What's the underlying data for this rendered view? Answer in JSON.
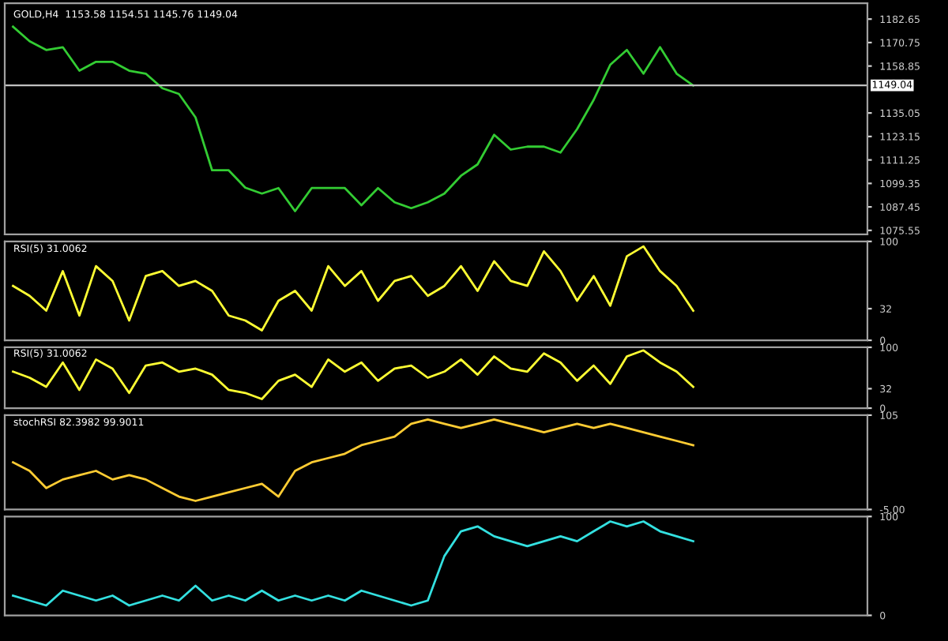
{
  "chart_data": [
    {
      "type": "line",
      "title": "GOLD,H4  1153.58 1154.51 1145.76 1149.04",
      "categories": [
        null,
        null,
        null,
        null,
        null,
        null,
        null,
        null,
        null,
        null,
        null,
        null,
        null,
        null,
        null,
        null,
        null,
        null,
        null,
        null,
        null,
        null,
        null,
        null,
        null,
        null,
        null,
        null,
        null,
        null,
        null,
        null,
        null,
        null,
        null,
        null,
        null,
        null,
        null,
        null,
        null,
        null,
        null,
        null,
        null,
        null,
        null,
        null,
        null,
        null,
        null,
        null
      ],
      "series": [
        {
          "color": "#33cc33",
          "values": [
            1178.8,
            1171.4,
            1167,
            1168.4,
            1156.5,
            1161,
            1161,
            1156.5,
            1155,
            1147.6,
            1144.7,
            1132.8,
            1106,
            1106,
            1097.2,
            1094.2,
            1097,
            1085.3,
            1097,
            1097,
            1097,
            1088.3,
            1097,
            1089.8,
            1086.8,
            1089.8,
            1094.2,
            1103.2,
            1109,
            1124,
            1116.5,
            1118,
            1118,
            1115,
            1126.9,
            1141.7,
            1159.5,
            1167,
            1155,
            1168.4,
            1155,
            1149,
            null,
            null,
            null,
            null,
            null,
            null,
            null,
            null,
            null,
            null
          ]
        }
      ],
      "ylim": [
        1073.5,
        1190.7
      ],
      "yticks": [
        1075.55,
        1087.45,
        1099.35,
        1111.25,
        1123.15,
        1135.05,
        1158.85,
        1170.75,
        1182.65
      ],
      "ref_lines": [
        {
          "axis": "y",
          "value": 1149.04,
          "label": "1149.04",
          "color": "#c0c0c0"
        }
      ],
      "tick_labels": "y",
      "grid": false
    },
    {
      "type": "line",
      "title": "RSI(5) 31.0062",
      "categories": [
        null,
        null,
        null,
        null,
        null,
        null,
        null,
        null,
        null,
        null,
        null,
        null,
        null,
        null,
        null,
        null,
        null,
        null,
        null,
        null,
        null,
        null,
        null,
        null,
        null,
        null,
        null,
        null,
        null,
        null,
        null,
        null,
        null,
        null,
        null,
        null,
        null,
        null,
        null,
        null,
        null,
        null,
        null,
        null,
        null,
        null,
        null,
        null,
        null,
        null,
        null,
        null
      ],
      "series": [
        {
          "color": "#ffff33",
          "values": [
            55,
            45,
            30,
            70,
            25,
            75,
            60,
            20,
            65,
            70,
            55,
            60,
            50,
            25,
            20,
            10,
            40,
            50,
            30,
            75,
            55,
            70,
            40,
            60,
            65,
            45,
            55,
            75,
            50,
            80,
            60,
            55,
            90,
            70,
            40,
            65,
            35,
            85,
            95,
            70,
            55,
            30,
            null,
            null,
            null,
            null,
            null,
            null,
            null,
            null,
            null,
            null
          ]
        }
      ],
      "ylim": [
        0,
        100
      ],
      "yticks": [
        0,
        32,
        100
      ],
      "tick_labels": "y",
      "grid": false
    },
    {
      "type": "line",
      "title": "RSI(5) 31.0062",
      "categories": [
        null,
        null,
        null,
        null,
        null,
        null,
        null,
        null,
        null,
        null,
        null,
        null,
        null,
        null,
        null,
        null,
        null,
        null,
        null,
        null,
        null,
        null,
        null,
        null,
        null,
        null,
        null,
        null,
        null,
        null,
        null,
        null,
        null,
        null,
        null,
        null,
        null,
        null,
        null,
        null,
        null,
        null,
        null,
        null,
        null,
        null,
        null,
        null,
        null,
        null,
        null,
        null
      ],
      "series": [
        {
          "color": "#ffff33",
          "values": [
            60,
            50,
            35,
            75,
            30,
            80,
            65,
            25,
            70,
            75,
            60,
            65,
            55,
            30,
            25,
            15,
            45,
            55,
            35,
            80,
            60,
            75,
            45,
            65,
            70,
            50,
            60,
            80,
            55,
            85,
            65,
            60,
            90,
            75,
            45,
            70,
            40,
            85,
            95,
            75,
            60,
            35,
            null,
            null,
            null,
            null,
            null,
            null,
            null,
            null,
            null,
            null
          ]
        }
      ],
      "ylim": [
        0,
        100
      ],
      "yticks": [
        0,
        32,
        100
      ],
      "tick_labels": "y",
      "grid": false
    },
    {
      "type": "line",
      "title": "stochRSI 82.3982 99.9011",
      "categories": [
        null,
        null,
        null,
        null,
        null,
        null,
        null,
        null,
        null,
        null,
        null,
        null,
        null,
        null,
        null,
        null,
        null,
        null,
        null,
        null,
        null,
        null,
        null,
        null,
        null,
        null,
        null,
        null,
        null,
        null,
        null,
        null,
        null,
        null,
        null,
        null,
        null,
        null,
        null,
        null,
        null,
        null,
        null,
        null,
        null,
        null,
        null,
        null,
        null,
        null,
        null,
        null
      ],
      "series": [
        {
          "color": "#ffcc33",
          "values": [
            50,
            40,
            20,
            30,
            35,
            40,
            30,
            35,
            30,
            20,
            10,
            5,
            10,
            15,
            20,
            25,
            10,
            40,
            50,
            55,
            60,
            70,
            75,
            80,
            95,
            100,
            95,
            90,
            95,
            100,
            95,
            90,
            85,
            90,
            95,
            90,
            95,
            90,
            85,
            80,
            75,
            70,
            null,
            null,
            null,
            null,
            null,
            null,
            null,
            null,
            null,
            null
          ]
        }
      ],
      "ylim": [
        -5,
        105
      ],
      "yticks": [
        {
          "value": -5,
          "label": "-5.00"
        },
        105
      ],
      "tick_labels": "y",
      "grid": false
    },
    {
      "type": "line",
      "categories": [
        null,
        null,
        null,
        null,
        null,
        null,
        null,
        null,
        null,
        null,
        null,
        null,
        null,
        null,
        null,
        null,
        null,
        null,
        null,
        null,
        null,
        null,
        null,
        null,
        null,
        null,
        null,
        null,
        null,
        null,
        null,
        null,
        null,
        null,
        null,
        null,
        null,
        null,
        null,
        null,
        null,
        null,
        null,
        null,
        null,
        null,
        null,
        null,
        null,
        null,
        null,
        null
      ],
      "series": [
        {
          "color": "#33e0e0",
          "values": [
            20,
            15,
            10,
            25,
            20,
            15,
            20,
            10,
            15,
            20,
            15,
            30,
            15,
            20,
            15,
            25,
            15,
            20,
            15,
            20,
            15,
            25,
            20,
            15,
            10,
            15,
            60,
            85,
            90,
            80,
            75,
            70,
            75,
            80,
            75,
            85,
            95,
            90,
            95,
            85,
            80,
            75,
            null,
            null,
            null,
            null,
            null,
            null,
            null,
            null,
            null,
            null
          ]
        }
      ],
      "ylim": [
        0,
        100
      ],
      "yticks": [
        0,
        100
      ],
      "tick_labels": "y",
      "grid": false
    }
  ]
}
